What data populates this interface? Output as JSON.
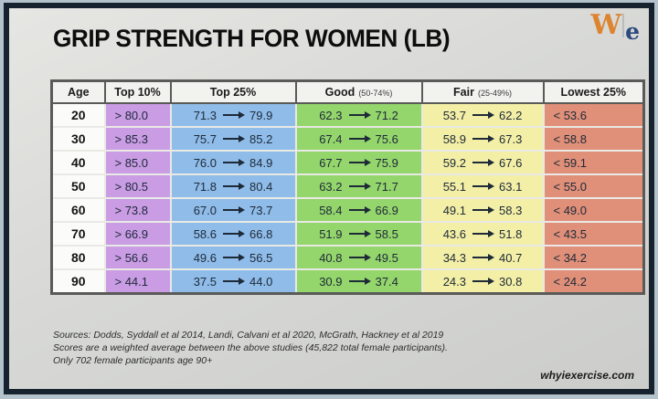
{
  "title": "GRIP STRENGTH FOR WOMEN (LB)",
  "logo": {
    "w": "W",
    "e": "e"
  },
  "table": {
    "headers": {
      "age": "Age",
      "top10": "Top 10%",
      "top25": "Top 25%",
      "good": "Good",
      "good_sub": "(50-74%)",
      "fair": "Fair",
      "fair_sub": "(25-49%)",
      "lowest": "Lowest 25%"
    },
    "rows": [
      {
        "age": "20",
        "top10": "> 80.0",
        "top25_from": "71.3",
        "top25_to": "79.9",
        "good_from": "62.3",
        "good_to": "71.2",
        "fair_from": "53.7",
        "fair_to": "62.2",
        "lowest": "< 53.6"
      },
      {
        "age": "30",
        "top10": "> 85.3",
        "top25_from": "75.7",
        "top25_to": "85.2",
        "good_from": "67.4",
        "good_to": "75.6",
        "fair_from": "58.9",
        "fair_to": "67.3",
        "lowest": "< 58.8"
      },
      {
        "age": "40",
        "top10": "> 85.0",
        "top25_from": "76.0",
        "top25_to": "84.9",
        "good_from": "67.7",
        "good_to": "75.9",
        "fair_from": "59.2",
        "fair_to": "67.6",
        "lowest": "< 59.1"
      },
      {
        "age": "50",
        "top10": "> 80.5",
        "top25_from": "71.8",
        "top25_to": "80.4",
        "good_from": "63.2",
        "good_to": "71.7",
        "fair_from": "55.1",
        "fair_to": "63.1",
        "lowest": "< 55.0"
      },
      {
        "age": "60",
        "top10": "> 73.8",
        "top25_from": "67.0",
        "top25_to": "73.7",
        "good_from": "58.4",
        "good_to": "66.9",
        "fair_from": "49.1",
        "fair_to": "58.3",
        "lowest": "< 49.0"
      },
      {
        "age": "70",
        "top10": "> 66.9",
        "top25_from": "58.6",
        "top25_to": "66.8",
        "good_from": "51.9",
        "good_to": "58.5",
        "fair_from": "43.6",
        "fair_to": "51.8",
        "lowest": "< 43.5"
      },
      {
        "age": "80",
        "top10": "> 56.6",
        "top25_from": "49.6",
        "top25_to": "56.5",
        "good_from": "40.8",
        "good_to": "49.5",
        "fair_from": "34.3",
        "fair_to": "40.7",
        "lowest": "< 34.2"
      },
      {
        "age": "90",
        "top10": "> 44.1",
        "top25_from": "37.5",
        "top25_to": "44.0",
        "good_from": "30.9",
        "good_to": "37.4",
        "fair_from": "24.3",
        "fair_to": "30.8",
        "lowest": "< 24.2"
      }
    ]
  },
  "footer": {
    "line1": "Sources:  Dodds, Syddall et al 2014, Landi, Calvani et al 2020, McGrath, Hackney et al 2019",
    "line2": "Scores are a weighted average between the above studies (45,822 total female participants).",
    "line3": "Only 702 female participants age 90+",
    "website": "whyiexercise.com"
  },
  "colors": {
    "frame": "#16232e",
    "outer_margin": "#b3c2cb",
    "card": "#d8d9d6",
    "header_bg": "#f2f2ef",
    "top10": "#c99ce4",
    "top25": "#8fbce9",
    "good": "#94d56c",
    "fair": "#f4efa6",
    "lowest25": "#e08f79",
    "logo_orange": "#dd8430",
    "logo_navy": "#2d4a7e"
  },
  "chart_data": {
    "type": "table",
    "title": "GRIP STRENGTH FOR WOMEN (LB)",
    "units": "lb",
    "columns": [
      "Age",
      "Top 10%",
      "Top 25%",
      "Good (50-74%)",
      "Fair (25-49%)",
      "Lowest 25%"
    ],
    "rows": [
      {
        "age": 20,
        "top10_min": 80.0,
        "top25": [
          71.3,
          79.9
        ],
        "good": [
          62.3,
          71.2
        ],
        "fair": [
          53.7,
          62.2
        ],
        "lowest25_max": 53.6
      },
      {
        "age": 30,
        "top10_min": 85.3,
        "top25": [
          75.7,
          85.2
        ],
        "good": [
          67.4,
          75.6
        ],
        "fair": [
          58.9,
          67.3
        ],
        "lowest25_max": 58.8
      },
      {
        "age": 40,
        "top10_min": 85.0,
        "top25": [
          76.0,
          84.9
        ],
        "good": [
          67.7,
          75.9
        ],
        "fair": [
          59.2,
          67.6
        ],
        "lowest25_max": 59.1
      },
      {
        "age": 50,
        "top10_min": 80.5,
        "top25": [
          71.8,
          80.4
        ],
        "good": [
          63.2,
          71.7
        ],
        "fair": [
          55.1,
          63.1
        ],
        "lowest25_max": 55.0
      },
      {
        "age": 60,
        "top10_min": 73.8,
        "top25": [
          67.0,
          73.7
        ],
        "good": [
          58.4,
          66.9
        ],
        "fair": [
          49.1,
          58.3
        ],
        "lowest25_max": 49.0
      },
      {
        "age": 70,
        "top10_min": 66.9,
        "top25": [
          58.6,
          66.8
        ],
        "good": [
          51.9,
          58.5
        ],
        "fair": [
          43.6,
          51.8
        ],
        "lowest25_max": 43.5
      },
      {
        "age": 80,
        "top10_min": 56.6,
        "top25": [
          49.6,
          56.5
        ],
        "good": [
          40.8,
          49.5
        ],
        "fair": [
          34.3,
          40.7
        ],
        "lowest25_max": 34.2
      },
      {
        "age": 90,
        "top10_min": 44.1,
        "top25": [
          37.5,
          44.0
        ],
        "good": [
          30.9,
          37.4
        ],
        "fair": [
          24.3,
          30.8
        ],
        "lowest25_max": 24.2
      }
    ],
    "sources": [
      "Dodds, Syddall et al 2014",
      "Landi, Calvani et al 2020",
      "McGrath, Hackney et al 2019"
    ],
    "notes": [
      "Scores are a weighted average between the above studies (45,822 total female participants).",
      "Only 702 female participants age 90+"
    ]
  }
}
